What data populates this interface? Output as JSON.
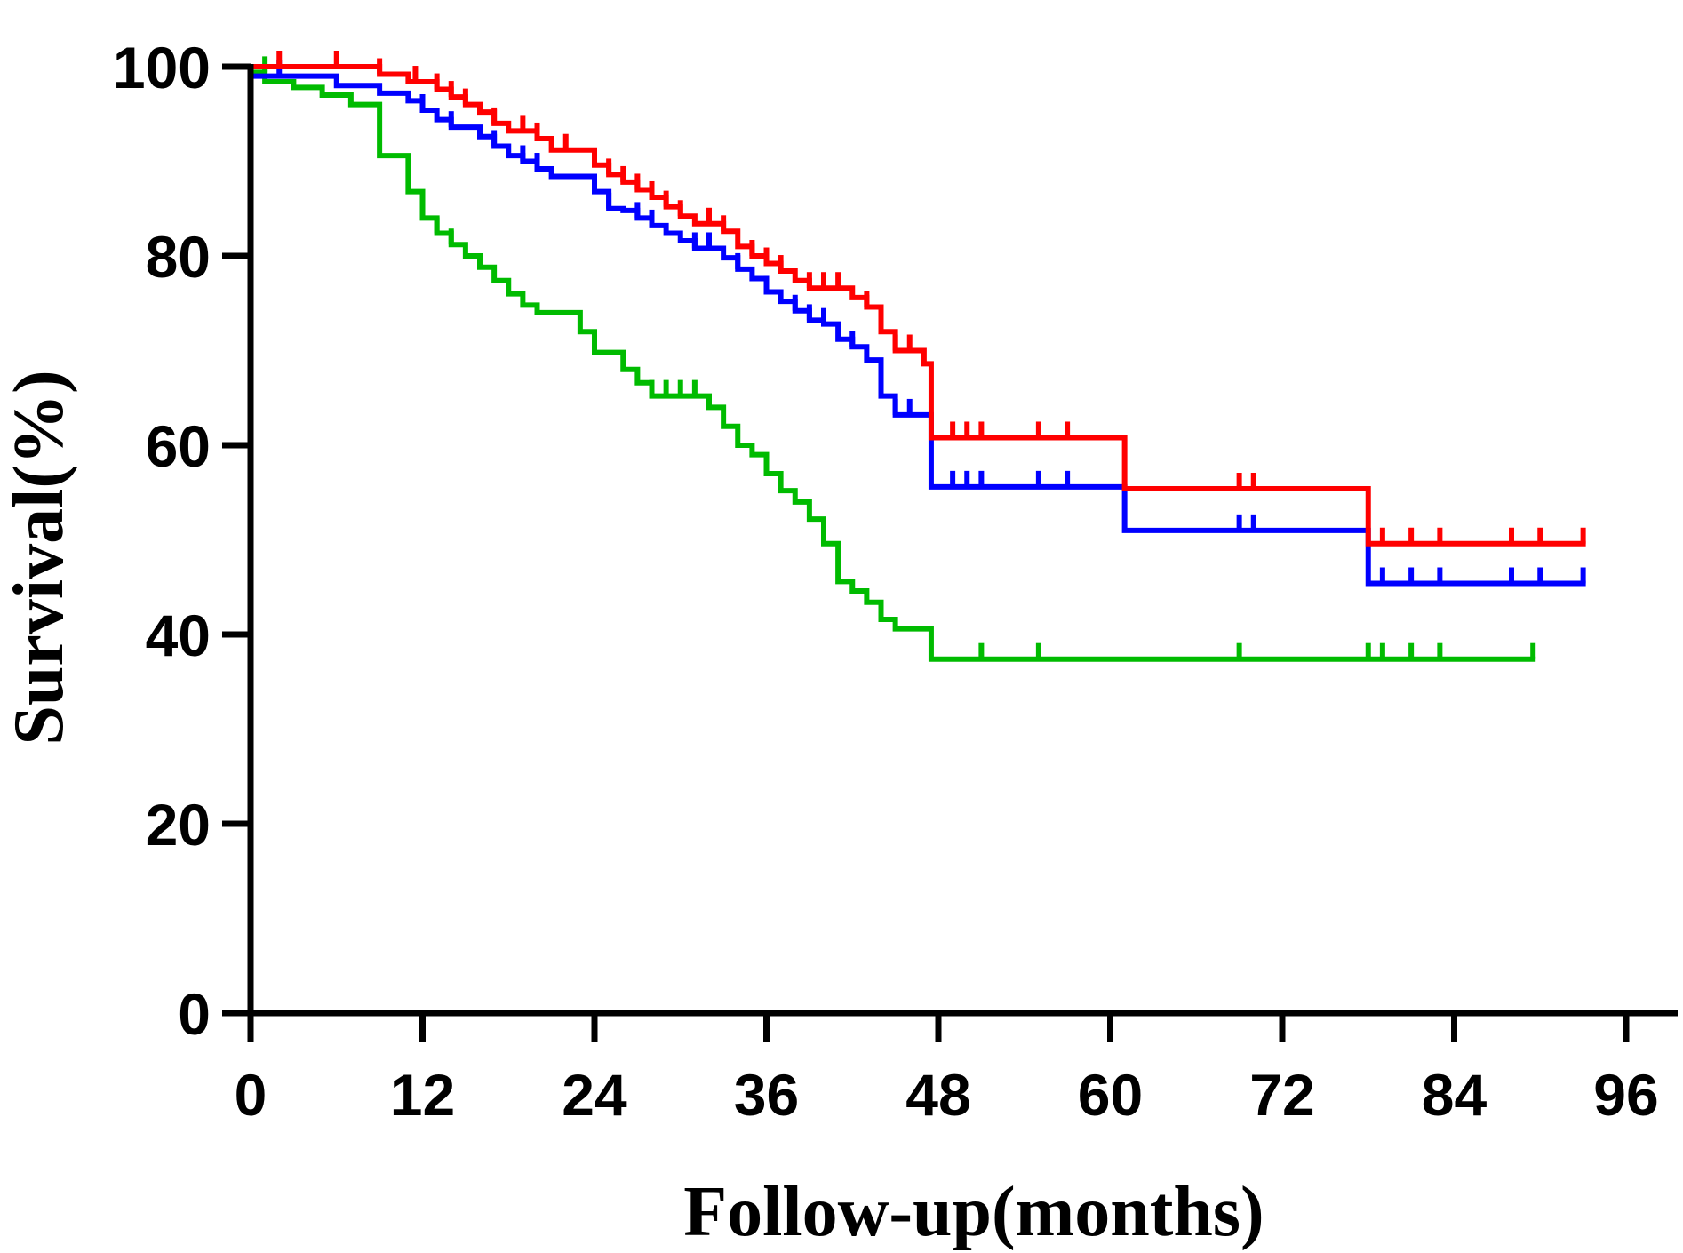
{
  "chart_data": {
    "type": "line",
    "step": true,
    "xlabel": "Follow-up(months)",
    "ylabel": "Survival(%)",
    "xlim": [
      0,
      96
    ],
    "ylim": [
      0,
      100
    ],
    "xticks": [
      0,
      12,
      24,
      36,
      48,
      60,
      72,
      84,
      96
    ],
    "yticks": [
      0,
      20,
      40,
      60,
      80,
      100
    ],
    "grid": false,
    "legend": "none",
    "series": [
      {
        "color": "#ff0000",
        "steps": [
          [
            0,
            100
          ],
          [
            9,
            99.2
          ],
          [
            11,
            98.4
          ],
          [
            13,
            97.6
          ],
          [
            14,
            96.8
          ],
          [
            15,
            96
          ],
          [
            16,
            95.2
          ],
          [
            17,
            94
          ],
          [
            18,
            93.2
          ],
          [
            20,
            92.4
          ],
          [
            21,
            91.2
          ],
          [
            24,
            89.6
          ],
          [
            25,
            88.6
          ],
          [
            26,
            87.8
          ],
          [
            27,
            87
          ],
          [
            28,
            86.2
          ],
          [
            29,
            85.2
          ],
          [
            30,
            84.2
          ],
          [
            31,
            83.4
          ],
          [
            33,
            82.6
          ],
          [
            34,
            81
          ],
          [
            35,
            80
          ],
          [
            36,
            79.2
          ],
          [
            37,
            78.4
          ],
          [
            38,
            77.4
          ],
          [
            39,
            76.6
          ],
          [
            42,
            75.6
          ],
          [
            43,
            74.6
          ],
          [
            44,
            72
          ],
          [
            45,
            70
          ],
          [
            47,
            68.6
          ],
          [
            47.5,
            60.8
          ],
          [
            61,
            55.4
          ],
          [
            78,
            49.6
          ]
        ],
        "end_x": 93,
        "censored": [
          [
            2,
            100
          ],
          [
            6,
            100
          ],
          [
            9,
            99.2
          ],
          [
            11.5,
            98.4
          ],
          [
            13,
            97.6
          ],
          [
            14,
            96.8
          ],
          [
            15,
            96
          ],
          [
            17,
            94
          ],
          [
            19,
            93.2
          ],
          [
            20,
            92.4
          ],
          [
            22,
            91.2
          ],
          [
            25,
            88.6
          ],
          [
            26,
            87.8
          ],
          [
            27,
            87
          ],
          [
            28,
            86.2
          ],
          [
            29,
            85.2
          ],
          [
            30,
            84.2
          ],
          [
            32,
            83.4
          ],
          [
            33,
            82.6
          ],
          [
            35,
            80
          ],
          [
            36,
            79.2
          ],
          [
            37,
            78.4
          ],
          [
            39,
            76.6
          ],
          [
            40,
            76.6
          ],
          [
            41,
            76.6
          ],
          [
            43,
            74.6
          ],
          [
            45,
            70
          ],
          [
            46,
            70
          ],
          [
            49,
            60.8
          ],
          [
            50,
            60.8
          ],
          [
            51,
            60.8
          ],
          [
            55,
            60.8
          ],
          [
            57,
            60.8
          ],
          [
            69,
            55.4
          ],
          [
            70,
            55.4
          ],
          [
            79,
            49.6
          ],
          [
            81,
            49.6
          ],
          [
            83,
            49.6
          ],
          [
            88,
            49.6
          ],
          [
            90,
            49.6
          ],
          [
            93,
            49.6
          ]
        ]
      },
      {
        "color": "#0000ff",
        "steps": [
          [
            0,
            99
          ],
          [
            6,
            98
          ],
          [
            9,
            97.2
          ],
          [
            11,
            96.4
          ],
          [
            12,
            95.4
          ],
          [
            13,
            94.4
          ],
          [
            14,
            93.6
          ],
          [
            16,
            92.6
          ],
          [
            17,
            91.6
          ],
          [
            18,
            90.6
          ],
          [
            19,
            90
          ],
          [
            20,
            89.2
          ],
          [
            21,
            88.4
          ],
          [
            24,
            86.8
          ],
          [
            25,
            85
          ],
          [
            26,
            84.8
          ],
          [
            27,
            84
          ],
          [
            28,
            83.2
          ],
          [
            29,
            82.4
          ],
          [
            30,
            81.6
          ],
          [
            31,
            80.8
          ],
          [
            33,
            79.8
          ],
          [
            34,
            78.6
          ],
          [
            35,
            77.6
          ],
          [
            36,
            76.2
          ],
          [
            37,
            75.2
          ],
          [
            38,
            74.2
          ],
          [
            39,
            73.2
          ],
          [
            40,
            72.8
          ],
          [
            41,
            71.2
          ],
          [
            42,
            70.4
          ],
          [
            43,
            69
          ],
          [
            44,
            65.2
          ],
          [
            45,
            63.2
          ],
          [
            47,
            63.2
          ],
          [
            47.5,
            55.6
          ],
          [
            61,
            51
          ],
          [
            78,
            45.4
          ]
        ],
        "end_x": 93,
        "censored": [
          [
            2,
            99
          ],
          [
            12,
            95.4
          ],
          [
            14,
            93.6
          ],
          [
            17,
            91.6
          ],
          [
            19,
            90
          ],
          [
            20,
            89.2
          ],
          [
            25,
            85
          ],
          [
            27,
            84
          ],
          [
            28,
            83.2
          ],
          [
            31,
            80.8
          ],
          [
            32,
            80.8
          ],
          [
            34,
            78.6
          ],
          [
            36,
            76.2
          ],
          [
            38,
            74.2
          ],
          [
            39,
            73.2
          ],
          [
            40,
            72.8
          ],
          [
            42,
            70.4
          ],
          [
            45,
            63.2
          ],
          [
            46,
            63.2
          ],
          [
            49,
            55.6
          ],
          [
            50,
            55.6
          ],
          [
            51,
            55.6
          ],
          [
            55,
            55.6
          ],
          [
            57,
            55.6
          ],
          [
            69,
            51
          ],
          [
            70,
            51
          ],
          [
            79,
            45.4
          ],
          [
            81,
            45.4
          ],
          [
            83,
            45.4
          ],
          [
            88,
            45.4
          ],
          [
            90,
            45.4
          ],
          [
            93,
            45.4
          ]
        ]
      },
      {
        "color": "#00bb00",
        "steps": [
          [
            0,
            99.4
          ],
          [
            1,
            98.4
          ],
          [
            3,
            97.8
          ],
          [
            5,
            97
          ],
          [
            7,
            96
          ],
          [
            9,
            90.6
          ],
          [
            11,
            86.8
          ],
          [
            12,
            84
          ],
          [
            13,
            82.4
          ],
          [
            14,
            81.2
          ],
          [
            15,
            80
          ],
          [
            16,
            78.8
          ],
          [
            17,
            77.4
          ],
          [
            18,
            76
          ],
          [
            19,
            74.8
          ],
          [
            20,
            74
          ],
          [
            22,
            74
          ],
          [
            23,
            72
          ],
          [
            24,
            69.8
          ],
          [
            26,
            68
          ],
          [
            27,
            66.6
          ],
          [
            28,
            65.2
          ],
          [
            32,
            64
          ],
          [
            33,
            62
          ],
          [
            34,
            60
          ],
          [
            35,
            59
          ],
          [
            36,
            57
          ],
          [
            37,
            55.2
          ],
          [
            38,
            54
          ],
          [
            39,
            52.2
          ],
          [
            40,
            49.6
          ],
          [
            41,
            45.6
          ],
          [
            42,
            44.6
          ],
          [
            43,
            43.4
          ],
          [
            44,
            41.6
          ],
          [
            45,
            40.6
          ],
          [
            47,
            40.6
          ],
          [
            47.5,
            37.4
          ]
        ],
        "end_x": 89.5,
        "censored": [
          [
            1,
            99.4
          ],
          [
            13,
            82.4
          ],
          [
            14,
            81.2
          ],
          [
            28,
            65.2
          ],
          [
            29,
            65.2
          ],
          [
            30,
            65.2
          ],
          [
            31,
            65.2
          ],
          [
            44,
            41.6
          ],
          [
            51,
            37.4
          ],
          [
            55,
            37.4
          ],
          [
            69,
            37.4
          ],
          [
            78,
            37.4
          ],
          [
            79,
            37.4
          ],
          [
            81,
            37.4
          ],
          [
            83,
            37.4
          ],
          [
            89.5,
            37.4
          ]
        ]
      }
    ]
  }
}
